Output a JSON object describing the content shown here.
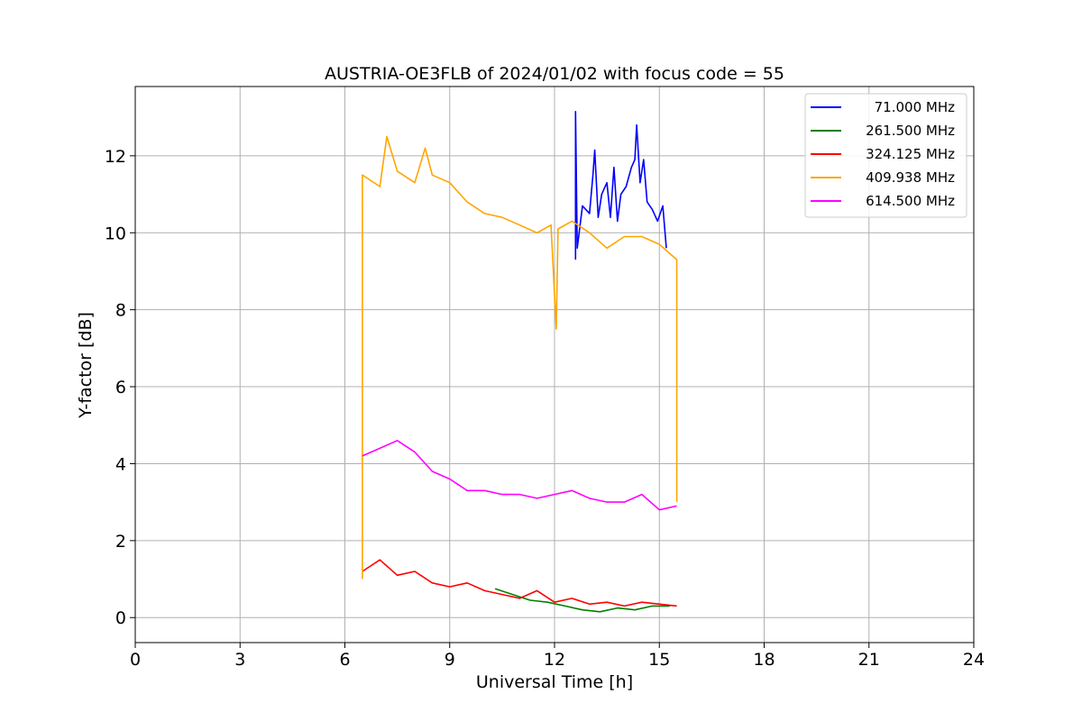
{
  "chart_data": {
    "type": "line",
    "title": "AUSTRIA-OE3FLB of 2024/01/02 with focus code = 55",
    "xlabel": "Universal Time [h]",
    "ylabel": "Y-factor [dB]",
    "xlim": [
      0,
      24
    ],
    "ylim": [
      -0.65,
      13.8
    ],
    "xticks": [
      0,
      3,
      6,
      9,
      12,
      15,
      18,
      21,
      24
    ],
    "yticks": [
      0,
      2,
      4,
      6,
      8,
      10,
      12
    ],
    "grid": true,
    "legend_position": "top-right",
    "series": [
      {
        "name": "71.000 MHz",
        "color": "#0000ff",
        "points": [
          [
            12.6,
            9.3
          ],
          [
            12.6,
            13.15
          ],
          [
            12.65,
            9.6
          ],
          [
            12.8,
            10.7
          ],
          [
            13.0,
            10.5
          ],
          [
            13.1,
            11.5
          ],
          [
            13.15,
            12.15
          ],
          [
            13.25,
            10.4
          ],
          [
            13.35,
            11.0
          ],
          [
            13.5,
            11.3
          ],
          [
            13.6,
            10.4
          ],
          [
            13.7,
            11.7
          ],
          [
            13.8,
            10.3
          ],
          [
            13.9,
            11.0
          ],
          [
            14.05,
            11.2
          ],
          [
            14.2,
            11.7
          ],
          [
            14.3,
            11.9
          ],
          [
            14.35,
            12.8
          ],
          [
            14.45,
            11.3
          ],
          [
            14.55,
            11.9
          ],
          [
            14.65,
            10.8
          ],
          [
            14.8,
            10.6
          ],
          [
            14.95,
            10.3
          ],
          [
            15.1,
            10.7
          ],
          [
            15.2,
            9.6
          ]
        ]
      },
      {
        "name": "261.500 MHz",
        "color": "#008000",
        "points": [
          [
            10.3,
            0.75
          ],
          [
            10.8,
            0.6
          ],
          [
            11.3,
            0.45
          ],
          [
            11.8,
            0.4
          ],
          [
            12.3,
            0.3
          ],
          [
            12.8,
            0.2
          ],
          [
            13.3,
            0.15
          ],
          [
            13.8,
            0.25
          ],
          [
            14.3,
            0.2
          ],
          [
            14.8,
            0.3
          ],
          [
            15.3,
            0.3
          ]
        ]
      },
      {
        "name": "324.125 MHz",
        "color": "#ff0000",
        "points": [
          [
            6.5,
            1.2
          ],
          [
            7.0,
            1.5
          ],
          [
            7.5,
            1.1
          ],
          [
            8.0,
            1.2
          ],
          [
            8.5,
            0.9
          ],
          [
            9.0,
            0.8
          ],
          [
            9.5,
            0.9
          ],
          [
            10.0,
            0.7
          ],
          [
            10.5,
            0.6
          ],
          [
            11.0,
            0.5
          ],
          [
            11.5,
            0.7
          ],
          [
            12.0,
            0.4
          ],
          [
            12.5,
            0.5
          ],
          [
            13.0,
            0.35
          ],
          [
            13.5,
            0.4
          ],
          [
            14.0,
            0.3
          ],
          [
            14.5,
            0.4
          ],
          [
            15.0,
            0.35
          ],
          [
            15.5,
            0.3
          ]
        ]
      },
      {
        "name": "409.938 MHz",
        "color": "#ffa500",
        "points": [
          [
            6.5,
            1.0
          ],
          [
            6.5,
            11.5
          ],
          [
            7.0,
            11.2
          ],
          [
            7.2,
            12.5
          ],
          [
            7.5,
            11.6
          ],
          [
            8.0,
            11.3
          ],
          [
            8.3,
            12.2
          ],
          [
            8.5,
            11.5
          ],
          [
            9.0,
            11.3
          ],
          [
            9.5,
            10.8
          ],
          [
            10.0,
            10.5
          ],
          [
            10.5,
            10.4
          ],
          [
            11.0,
            10.2
          ],
          [
            11.5,
            10.0
          ],
          [
            11.9,
            10.2
          ],
          [
            12.05,
            7.5
          ],
          [
            12.1,
            10.1
          ],
          [
            12.5,
            10.3
          ],
          [
            13.0,
            10.0
          ],
          [
            13.5,
            9.6
          ],
          [
            14.0,
            9.9
          ],
          [
            14.5,
            9.9
          ],
          [
            15.0,
            9.7
          ],
          [
            15.5,
            9.3
          ],
          [
            15.5,
            3.0
          ]
        ]
      },
      {
        "name": "614.500 MHz",
        "color": "#ff00ff",
        "points": [
          [
            6.5,
            4.2
          ],
          [
            7.0,
            4.4
          ],
          [
            7.5,
            4.6
          ],
          [
            8.0,
            4.3
          ],
          [
            8.5,
            3.8
          ],
          [
            9.0,
            3.6
          ],
          [
            9.5,
            3.3
          ],
          [
            10.0,
            3.3
          ],
          [
            10.5,
            3.2
          ],
          [
            11.0,
            3.2
          ],
          [
            11.5,
            3.1
          ],
          [
            12.0,
            3.2
          ],
          [
            12.5,
            3.3
          ],
          [
            13.0,
            3.1
          ],
          [
            13.5,
            3.0
          ],
          [
            14.0,
            3.0
          ],
          [
            14.5,
            3.2
          ],
          [
            15.0,
            2.8
          ],
          [
            15.5,
            2.9
          ]
        ]
      }
    ]
  }
}
